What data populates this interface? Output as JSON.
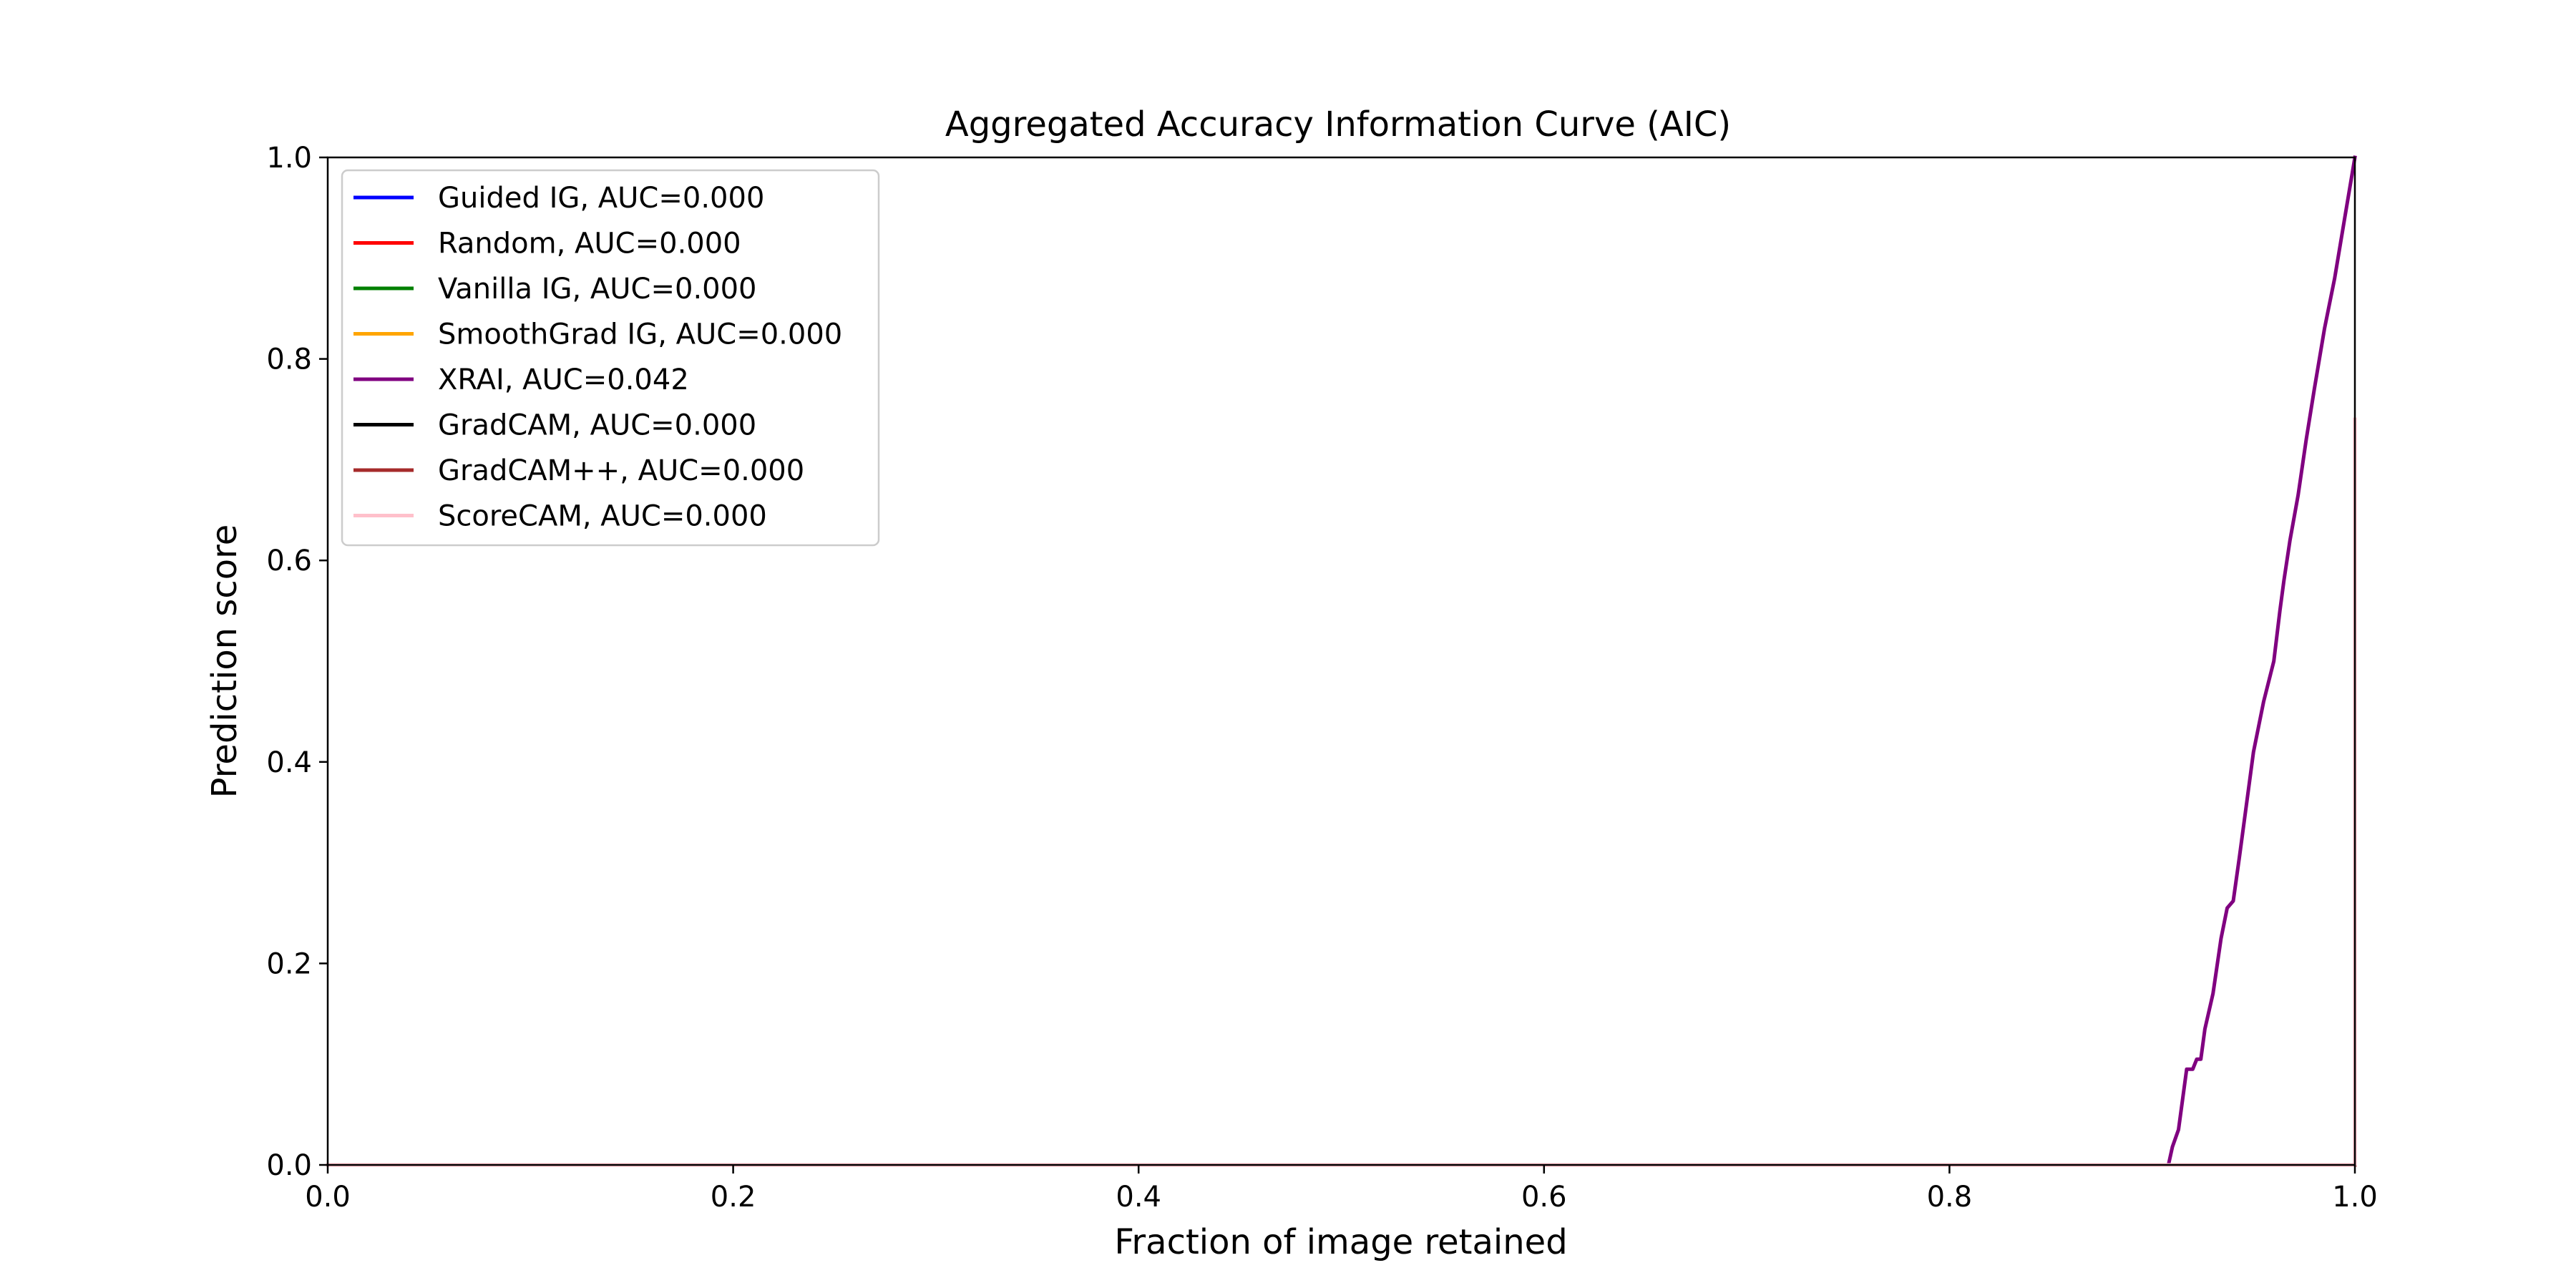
{
  "chart_data": {
    "type": "line",
    "title": "Aggregated Accuracy Information Curve (AIC)",
    "xlabel": "Fraction of image retained",
    "ylabel": "Prediction score",
    "xlim": [
      0.0,
      1.0
    ],
    "ylim": [
      0.0,
      1.0
    ],
    "xticks": [
      "0.0",
      "0.2",
      "0.4",
      "0.6",
      "0.8",
      "1.0"
    ],
    "yticks": [
      "0.0",
      "0.2",
      "0.4",
      "0.6",
      "0.8",
      "1.0"
    ],
    "grid": false,
    "legend_position": "upper-left",
    "series": [
      {
        "name": "Guided IG, AUC=0.000",
        "color": "#0000ff",
        "x": [
          0.0,
          1.0
        ],
        "y": [
          0.0,
          0.0
        ]
      },
      {
        "name": "Random, AUC=0.000",
        "color": "#ff0000",
        "x": [
          0.0,
          1.0
        ],
        "y": [
          0.0,
          0.0
        ]
      },
      {
        "name": "Vanilla IG, AUC=0.000",
        "color": "#008000",
        "x": [
          0.0,
          1.0
        ],
        "y": [
          0.0,
          0.0
        ]
      },
      {
        "name": "SmoothGrad IG, AUC=0.000",
        "color": "#ffa500",
        "x": [
          0.0,
          1.0
        ],
        "y": [
          0.0,
          0.0
        ]
      },
      {
        "name": "XRAI, AUC=0.042",
        "color": "#800080",
        "x": [
          0.0,
          0.908,
          0.91,
          0.913,
          0.915,
          0.917,
          0.92,
          0.922,
          0.924,
          0.926,
          0.93,
          0.934,
          0.937,
          0.94,
          0.943,
          0.946,
          0.95,
          0.955,
          0.96,
          0.963,
          0.965,
          0.968,
          0.972,
          0.976,
          0.98,
          0.985,
          0.99,
          0.995,
          1.0
        ],
        "y": [
          0.0,
          0.0,
          0.018,
          0.035,
          0.065,
          0.095,
          0.095,
          0.105,
          0.105,
          0.135,
          0.17,
          0.225,
          0.255,
          0.262,
          0.305,
          0.35,
          0.41,
          0.46,
          0.5,
          0.55,
          0.58,
          0.62,
          0.665,
          0.72,
          0.77,
          0.83,
          0.88,
          0.94,
          1.0
        ]
      },
      {
        "name": "GradCAM, AUC=0.000",
        "color": "#000000",
        "x": [
          0.0,
          1.0
        ],
        "y": [
          0.0,
          0.0
        ]
      },
      {
        "name": "GradCAM++, AUC=0.000",
        "color": "#a52a2a",
        "x": [
          0.0,
          1.0
        ],
        "y": [
          0.0,
          0.0
        ]
      },
      {
        "name": "ScoreCAM, AUC=0.000",
        "color": "#ffc0cb",
        "x": [
          0.0,
          0.9995,
          1.0,
          1.0
        ],
        "y": [
          0.0,
          0.0,
          0.0,
          0.74
        ]
      }
    ]
  }
}
